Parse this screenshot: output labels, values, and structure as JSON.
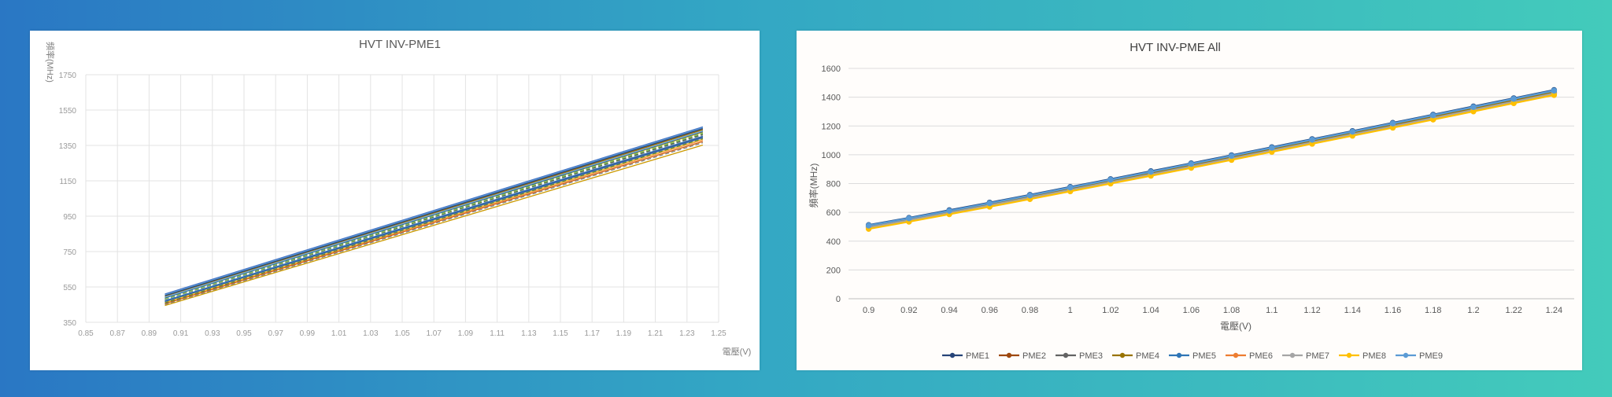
{
  "chart_data": [
    {
      "type": "line",
      "title": "HVT INV-PME1",
      "xlabel": "電壓(V)",
      "ylabel": "頻率(MHz)",
      "xlim": [
        0.85,
        1.25
      ],
      "ylim": [
        350,
        1750
      ],
      "x_ticks": [
        "0.85",
        "0.87",
        "0.89",
        "0.91",
        "0.93",
        "0.95",
        "0.97",
        "0.99",
        "1.01",
        "1.03",
        "1.05",
        "1.07",
        "1.09",
        "1.11",
        "1.13",
        "1.15",
        "1.17",
        "1.19",
        "1.21",
        "1.23",
        "1.25"
      ],
      "y_ticks": [
        "350",
        "550",
        "750",
        "950",
        "1150",
        "1350",
        "1550",
        "1750"
      ],
      "grid": true,
      "legend": "none",
      "x": [
        0.9,
        1.24
      ],
      "series": [
        {
          "color": "#4472c4",
          "values": [
            510,
            1455
          ]
        },
        {
          "color": "#ed7d31",
          "values": [
            500,
            1440
          ]
        },
        {
          "color": "#a5a5a5",
          "values": [
            495,
            1430
          ]
        },
        {
          "color": "#ffc000",
          "values": [
            490,
            1425
          ]
        },
        {
          "color": "#5b9bd5",
          "values": [
            505,
            1450
          ]
        },
        {
          "color": "#70ad47",
          "values": [
            485,
            1420
          ]
        },
        {
          "color": "#264478",
          "values": [
            500,
            1445
          ]
        },
        {
          "color": "#9e480e",
          "values": [
            470,
            1400
          ]
        },
        {
          "color": "#636363",
          "values": [
            480,
            1410
          ]
        },
        {
          "color": "#997300",
          "values": [
            495,
            1438
          ]
        },
        {
          "color": "#255e91",
          "values": [
            488,
            1428
          ]
        },
        {
          "color": "#43682b",
          "values": [
            478,
            1415
          ]
        },
        {
          "color": "#698ed0",
          "values": [
            465,
            1392
          ]
        },
        {
          "color": "#f1975a",
          "values": [
            458,
            1380
          ]
        },
        {
          "color": "#b7b7b7",
          "values": [
            475,
            1405
          ]
        },
        {
          "color": "#ffcd33",
          "values": [
            462,
            1385
          ]
        },
        {
          "color": "#7cafdd",
          "values": [
            492,
            1432
          ]
        },
        {
          "color": "#8cc168",
          "values": [
            482,
            1418
          ]
        },
        {
          "color": "#335aa1",
          "values": [
            468,
            1396
          ]
        },
        {
          "color": "#d26012",
          "values": [
            455,
            1372
          ]
        },
        {
          "color": "#848484",
          "values": [
            450,
            1365
          ]
        },
        {
          "color": "#cc9a00",
          "values": [
            445,
            1352
          ]
        },
        {
          "color": "#2e75b6",
          "values": [
            472,
            1402
          ]
        },
        {
          "color": "#548235",
          "values": [
            460,
            1388
          ]
        }
      ]
    },
    {
      "type": "line",
      "title": "HVT INV-PME All",
      "xlabel": "電壓(V)",
      "ylabel": "頻率(MHz)",
      "categories": [
        "0.9",
        "0.92",
        "0.94",
        "0.96",
        "0.98",
        "1",
        "1.02",
        "1.04",
        "1.06",
        "1.08",
        "1.1",
        "1.12",
        "1.14",
        "1.16",
        "1.18",
        "1.2",
        "1.22",
        "1.24"
      ],
      "ylim": [
        0,
        1600
      ],
      "y_ticks": [
        "0",
        "200",
        "400",
        "600",
        "800",
        "1000",
        "1200",
        "1400",
        "1600"
      ],
      "grid": true,
      "legend": "bottom",
      "series": [
        {
          "name": "PME1",
          "color": "#264478",
          "values": [
            512,
            562,
            615,
            668,
            722,
            777,
            831,
            886,
            941,
            997,
            1053,
            1109,
            1165,
            1222,
            1279,
            1336,
            1393,
            1450
          ]
        },
        {
          "name": "PME2",
          "color": "#9e480e",
          "values": [
            498,
            548,
            600,
            652,
            705,
            759,
            813,
            868,
            922,
            978,
            1033,
            1089,
            1144,
            1200,
            1257,
            1313,
            1370,
            1427
          ]
        },
        {
          "name": "PME3",
          "color": "#636363",
          "values": [
            503,
            553,
            605,
            658,
            711,
            765,
            819,
            874,
            929,
            984,
            1040,
            1096,
            1152,
            1208,
            1265,
            1322,
            1379,
            1436
          ]
        },
        {
          "name": "PME4",
          "color": "#997300",
          "values": [
            500,
            550,
            602,
            655,
            708,
            762,
            816,
            871,
            926,
            981,
            1037,
            1093,
            1149,
            1205,
            1262,
            1319,
            1376,
            1433
          ]
        },
        {
          "name": "PME5",
          "color": "#2e75b6",
          "values": [
            510,
            560,
            612,
            665,
            719,
            774,
            828,
            883,
            938,
            994,
            1050,
            1106,
            1162,
            1219,
            1276,
            1333,
            1390,
            1447
          ]
        },
        {
          "name": "PME6",
          "color": "#ed7d31",
          "values": [
            492,
            542,
            594,
            646,
            699,
            753,
            807,
            861,
            916,
            971,
            1027,
            1083,
            1139,
            1195,
            1251,
            1308,
            1365,
            1422
          ]
        },
        {
          "name": "PME7",
          "color": "#a5a5a5",
          "values": [
            495,
            545,
            597,
            649,
            702,
            756,
            810,
            864,
            919,
            974,
            1030,
            1086,
            1142,
            1198,
            1255,
            1312,
            1369,
            1426
          ]
        },
        {
          "name": "PME8",
          "color": "#ffc000",
          "values": [
            485,
            535,
            587,
            639,
            692,
            746,
            800,
            854,
            909,
            964,
            1020,
            1076,
            1132,
            1188,
            1244,
            1301,
            1358,
            1415
          ]
        },
        {
          "name": "PME9",
          "color": "#5b9bd5",
          "values": [
            508,
            558,
            610,
            663,
            717,
            772,
            826,
            881,
            936,
            992,
            1048,
            1104,
            1160,
            1217,
            1274,
            1331,
            1388,
            1445
          ]
        }
      ]
    }
  ]
}
